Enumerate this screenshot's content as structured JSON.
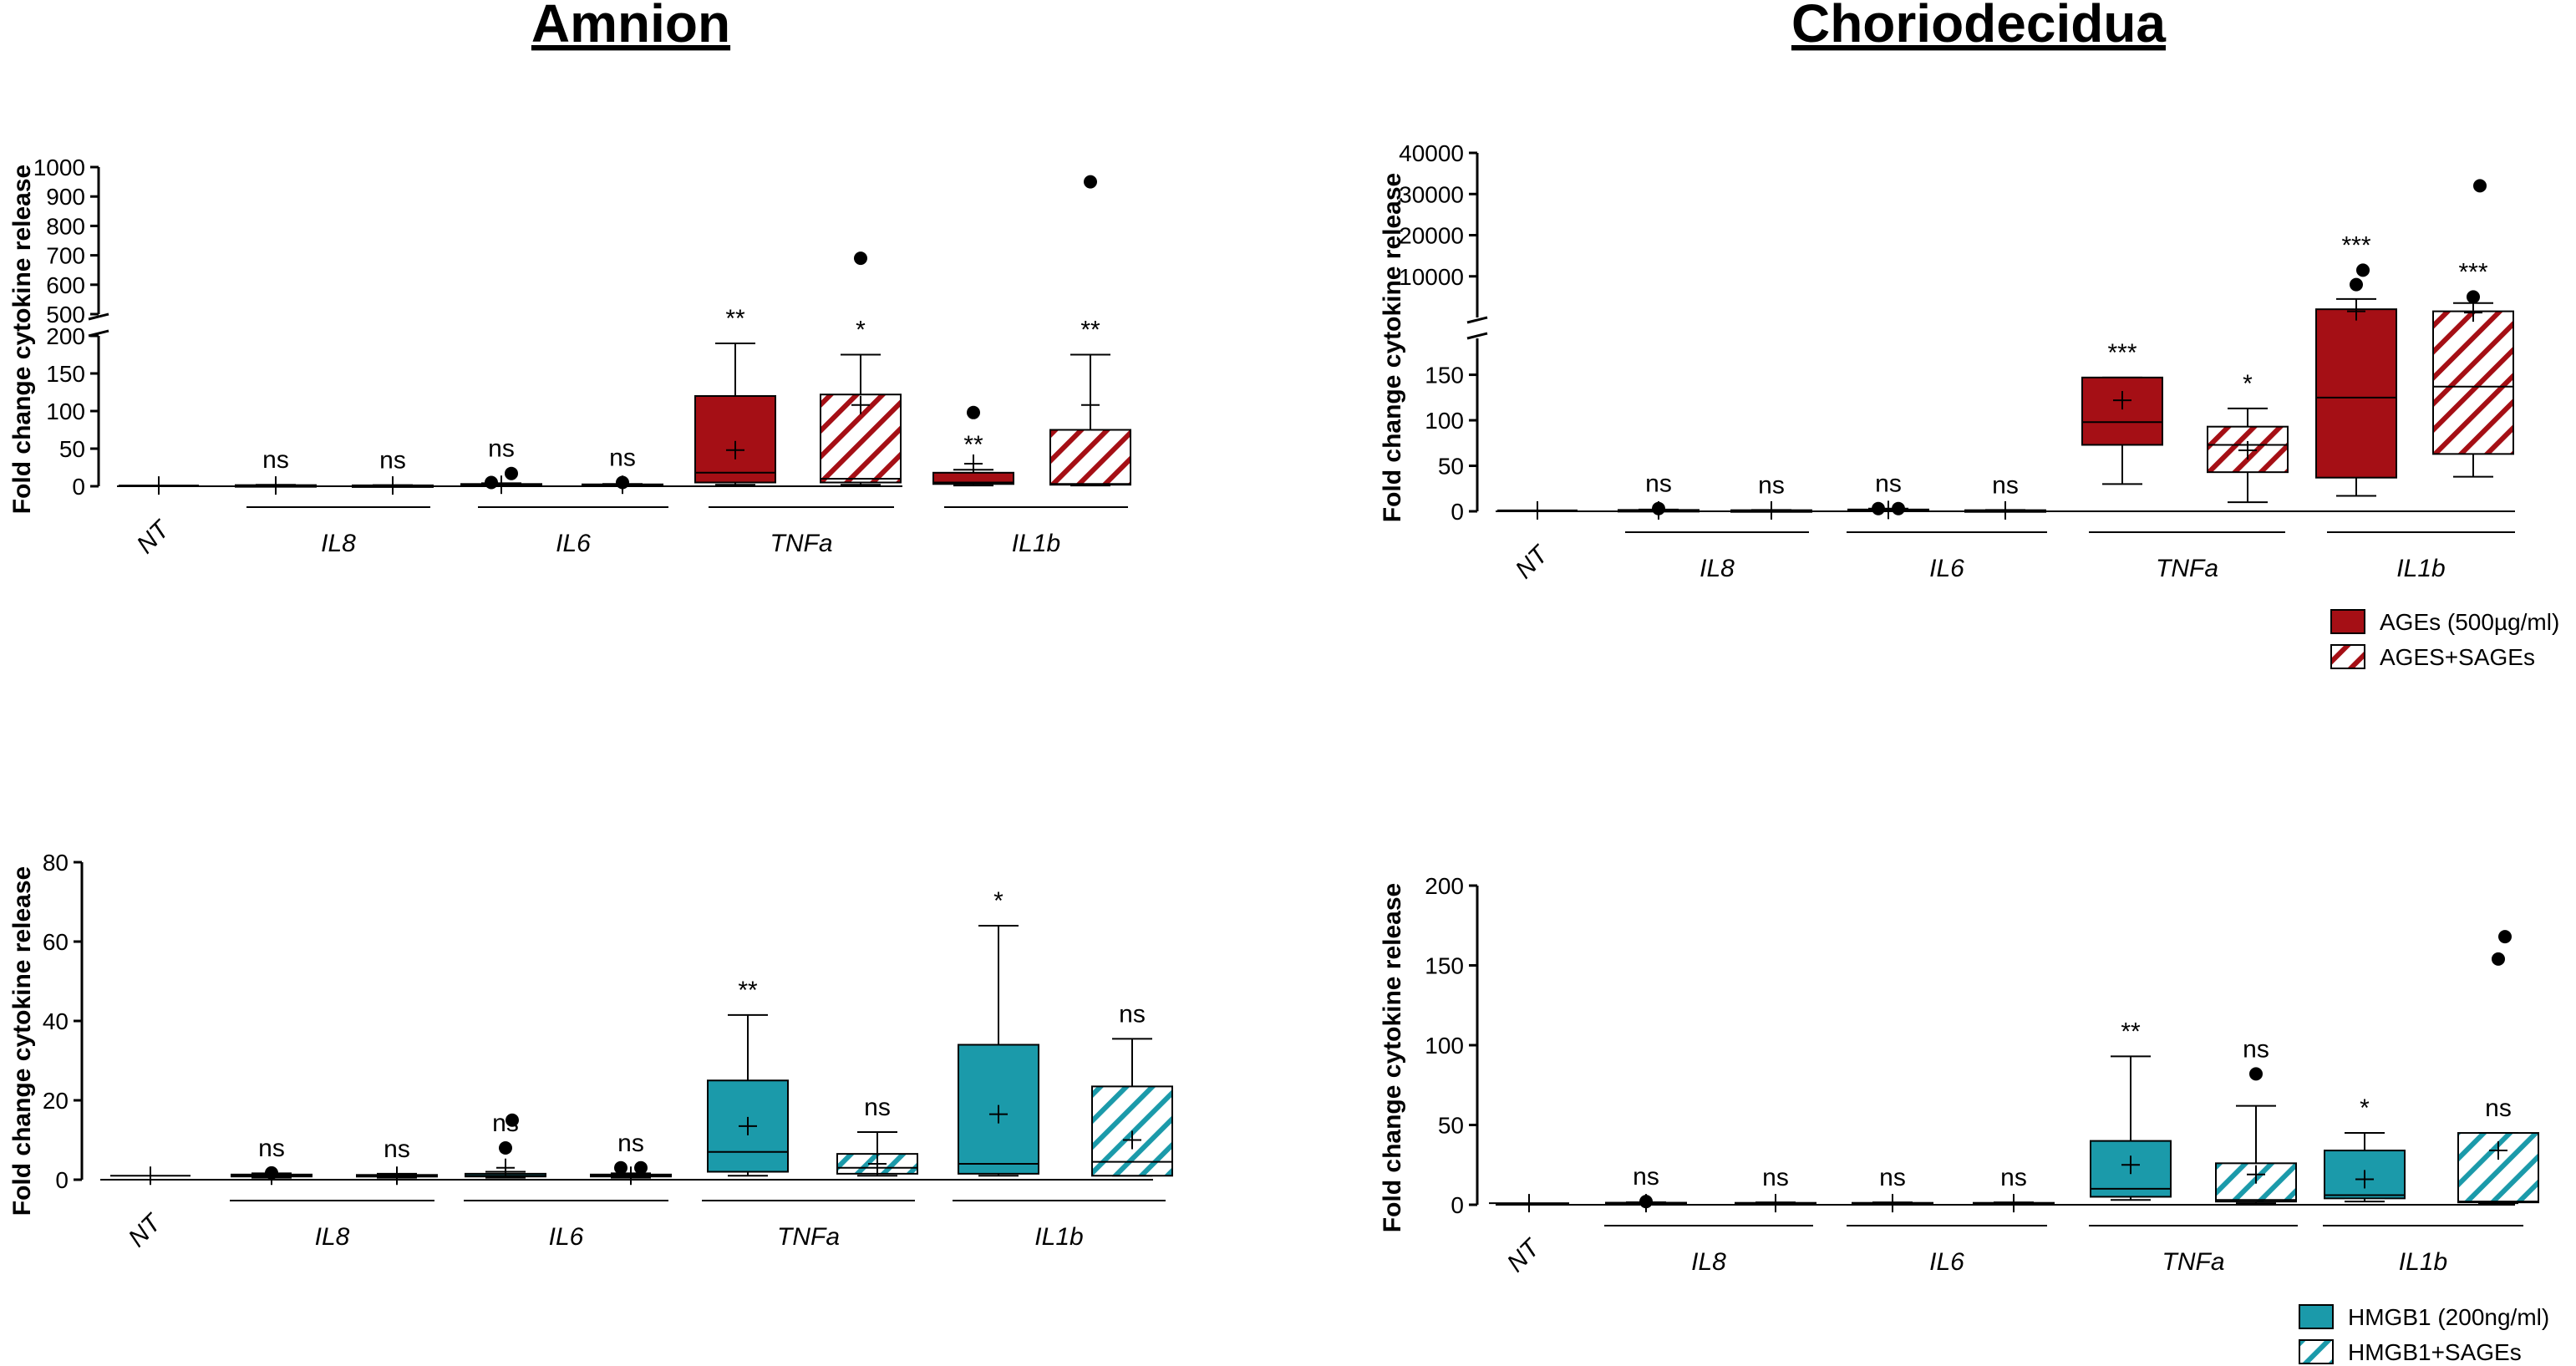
{
  "titles": {
    "left": "Amnion",
    "right": "Choriodecidua"
  },
  "colors": {
    "ages": "#a50f15",
    "hmgb1": "#1b9aaa",
    "axis": "#000000"
  },
  "legends": {
    "ages": [
      {
        "label": "AGEs (500µg/ml)",
        "style": "solid"
      },
      {
        "label": "AGES+SAGEs",
        "style": "hatched"
      }
    ],
    "hmgb1": [
      {
        "label": "HMGB1 (200ng/ml)",
        "style": "solid"
      },
      {
        "label": "HMGB1+SAGEs",
        "style": "hatched"
      }
    ]
  },
  "chart_data": [
    {
      "id": "amnion-ages",
      "type": "boxplot",
      "title": "Amnion",
      "ylabel": "Fold change cytokine release",
      "ylim": [
        0,
        1000
      ],
      "axis_break": [
        200,
        500
      ],
      "yticks_lower": [
        "0",
        "50",
        "100",
        "150",
        "200"
      ],
      "yticks_upper": [
        "500",
        "600",
        "700",
        "800",
        "900",
        "1000"
      ],
      "nt_label": "NT",
      "categories": [
        "IL8",
        "IL6",
        "TNFa",
        "IL1b"
      ],
      "color": "ages",
      "series": [
        {
          "name": "NT",
          "boxes": [
            {
              "min": 1,
              "q1": 1,
              "median": 1,
              "q3": 1,
              "max": 1,
              "mean": 1,
              "sig": "",
              "outliers": []
            }
          ]
        },
        {
          "name": "AGEs (500µg/ml)",
          "style": "solid",
          "boxes": [
            {
              "min": 0.5,
              "q1": 0.8,
              "median": 1,
              "q3": 1.5,
              "max": 2,
              "mean": 1,
              "sig": "ns",
              "outliers": []
            },
            {
              "min": 0.5,
              "q1": 1,
              "median": 1.5,
              "q3": 3,
              "max": 4,
              "mean": 2,
              "sig": "ns",
              "outliers": [
                5,
                17
              ]
            },
            {
              "min": 2,
              "q1": 5,
              "median": 18,
              "q3": 120,
              "max": 190,
              "mean": 48,
              "sig": "**",
              "outliers": []
            },
            {
              "min": 1,
              "q1": 3,
              "median": 5,
              "q3": 18,
              "max": 22,
              "mean": 30,
              "sig": "**",
              "outliers": [
                98
              ]
            }
          ]
        },
        {
          "name": "AGES+SAGEs",
          "style": "hatched",
          "boxes": [
            {
              "min": 0.5,
              "q1": 0.8,
              "median": 1,
              "q3": 1.2,
              "max": 1.5,
              "mean": 1,
              "sig": "ns",
              "outliers": []
            },
            {
              "min": 0.5,
              "q1": 1,
              "median": 1.5,
              "q3": 2.5,
              "max": 3,
              "mean": 2,
              "sig": "ns",
              "outliers": [
                5
              ]
            },
            {
              "min": 2,
              "q1": 5,
              "median": 10,
              "q3": 122,
              "max": 175,
              "mean": 108,
              "sig": "*",
              "outliers": [
                690
              ]
            },
            {
              "min": 1,
              "q1": 2,
              "median": 3,
              "q3": 75,
              "max": 175,
              "mean": 108,
              "sig": "**",
              "outliers": [
                950
              ]
            }
          ]
        }
      ]
    },
    {
      "id": "choriodecidua-ages",
      "type": "boxplot",
      "title": "Choriodecidua",
      "ylabel": "Fold change cytokine release",
      "ylim": [
        0,
        40000
      ],
      "axis_break": [
        190,
        1000
      ],
      "yticks_lower": [
        "0",
        "50",
        "100",
        "150"
      ],
      "yticks_upper": [
        "10000",
        "20000",
        "30000",
        "40000"
      ],
      "nt_label": "NT",
      "categories": [
        "IL8",
        "IL6",
        "TNFa",
        "IL1b"
      ],
      "color": "ages",
      "series": [
        {
          "name": "NT",
          "boxes": [
            {
              "min": 1,
              "q1": 1,
              "median": 1,
              "q3": 1,
              "max": 1,
              "mean": 1,
              "sig": "",
              "outliers": []
            }
          ]
        },
        {
          "name": "AGEs (500µg/ml)",
          "style": "solid",
          "boxes": [
            {
              "min": 0.5,
              "q1": 0.8,
              "median": 1,
              "q3": 1.5,
              "max": 2,
              "mean": 1,
              "sig": "ns",
              "outliers": [
                3
              ]
            },
            {
              "min": 0.5,
              "q1": 1,
              "median": 1.5,
              "q3": 2,
              "max": 3,
              "mean": 1.5,
              "sig": "ns",
              "outliers": [
                3,
                3
              ]
            },
            {
              "min": 30,
              "q1": 73,
              "median": 98,
              "q3": 147,
              "max": 147,
              "mean": 122,
              "sig": "***",
              "outliers": []
            },
            {
              "min": 17,
              "q1": 37,
              "median": 125,
              "q3": 2000,
              "max": 4500,
              "mean": 1500,
              "sig": "***",
              "outliers": [
                8000,
                11500
              ]
            }
          ]
        },
        {
          "name": "AGES+SAGEs",
          "style": "hatched",
          "boxes": [
            {
              "min": 0.5,
              "q1": 0.8,
              "median": 1,
              "q3": 1.2,
              "max": 1.5,
              "mean": 1,
              "sig": "ns",
              "outliers": []
            },
            {
              "min": 0.5,
              "q1": 0.8,
              "median": 1,
              "q3": 1.2,
              "max": 1.5,
              "mean": 1,
              "sig": "ns",
              "outliers": []
            },
            {
              "min": 10,
              "q1": 43,
              "median": 73,
              "q3": 93,
              "max": 113,
              "mean": 67,
              "sig": "*",
              "outliers": []
            },
            {
              "min": 38,
              "q1": 63,
              "median": 137,
              "q3": 1500,
              "max": 3500,
              "mean": 1200,
              "sig": "***",
              "outliers": [
                5000,
                32000
              ]
            }
          ]
        }
      ]
    },
    {
      "id": "amnion-hmgb1",
      "type": "boxplot",
      "title": "Amnion",
      "ylabel": "Fold change cytokine release",
      "ylim": [
        0,
        80
      ],
      "yticks": [
        "0",
        "20",
        "40",
        "60",
        "80"
      ],
      "nt_label": "NT",
      "categories": [
        "IL8",
        "IL6",
        "TNFa",
        "IL1b"
      ],
      "color": "hmgb1",
      "series": [
        {
          "name": "NT",
          "boxes": [
            {
              "min": 1,
              "q1": 1,
              "median": 1,
              "q3": 1,
              "max": 1,
              "mean": 1,
              "sig": "",
              "outliers": []
            }
          ]
        },
        {
          "name": "HMGB1 (200ng/ml)",
          "style": "solid",
          "boxes": [
            {
              "min": 0.5,
              "q1": 0.8,
              "median": 1,
              "q3": 1.3,
              "max": 1.6,
              "mean": 1,
              "sig": "ns",
              "outliers": [
                1.7
              ]
            },
            {
              "min": 0.5,
              "q1": 0.8,
              "median": 1,
              "q3": 1.5,
              "max": 2,
              "mean": 3,
              "sig": "ns",
              "outliers": [
                8,
                15
              ]
            },
            {
              "min": 1,
              "q1": 2,
              "median": 7,
              "q3": 25,
              "max": 41.5,
              "mean": 13.5,
              "sig": "**",
              "outliers": []
            },
            {
              "min": 1,
              "q1": 1.5,
              "median": 4,
              "q3": 34,
              "max": 64,
              "mean": 16.5,
              "sig": "*",
              "outliers": []
            }
          ]
        },
        {
          "name": "HMGB1+SAGEs",
          "style": "hatched",
          "boxes": [
            {
              "min": 0.5,
              "q1": 0.8,
              "median": 1,
              "q3": 1.2,
              "max": 1.5,
              "mean": 1,
              "sig": "ns",
              "outliers": []
            },
            {
              "min": 0.5,
              "q1": 0.8,
              "median": 1,
              "q3": 1.3,
              "max": 1.6,
              "mean": 1,
              "sig": "ns",
              "outliers": [
                3,
                3
              ]
            },
            {
              "min": 1,
              "q1": 1.5,
              "median": 3,
              "q3": 6.5,
              "max": 12,
              "mean": 4,
              "sig": "ns",
              "outliers": []
            },
            {
              "min": 1,
              "q1": 1,
              "median": 4.5,
              "q3": 23.5,
              "max": 35.5,
              "mean": 10,
              "sig": "ns",
              "outliers": []
            }
          ]
        }
      ]
    },
    {
      "id": "choriodecidua-hmgb1",
      "type": "boxplot",
      "title": "Choriodecidua",
      "ylabel": "Fold change cytokine release",
      "ylim": [
        0,
        200
      ],
      "yticks": [
        "0",
        "50",
        "100",
        "150",
        "200"
      ],
      "nt_label": "NT",
      "categories": [
        "IL8",
        "IL6",
        "TNFa",
        "IL1b"
      ],
      "color": "hmgb1",
      "series": [
        {
          "name": "NT",
          "boxes": [
            {
              "min": 1,
              "q1": 1,
              "median": 1,
              "q3": 1,
              "max": 1,
              "mean": 1,
              "sig": "",
              "outliers": []
            }
          ]
        },
        {
          "name": "HMGB1 (200ng/ml)",
          "style": "solid",
          "boxes": [
            {
              "min": 0.5,
              "q1": 0.8,
              "median": 1,
              "q3": 1.3,
              "max": 1.6,
              "mean": 1,
              "sig": "ns",
              "outliers": [
                2
              ]
            },
            {
              "min": 0.5,
              "q1": 0.8,
              "median": 1,
              "q3": 1.2,
              "max": 1.5,
              "mean": 1,
              "sig": "ns",
              "outliers": []
            },
            {
              "min": 3,
              "q1": 5,
              "median": 10,
              "q3": 40,
              "max": 93,
              "mean": 25,
              "sig": "**",
              "outliers": []
            },
            {
              "min": 2,
              "q1": 4,
              "median": 6,
              "q3": 34,
              "max": 45,
              "mean": 16,
              "sig": "*",
              "outliers": []
            }
          ]
        },
        {
          "name": "HMGB1+SAGEs",
          "style": "hatched",
          "boxes": [
            {
              "min": 0.5,
              "q1": 0.8,
              "median": 1,
              "q3": 1.2,
              "max": 1.5,
              "mean": 1,
              "sig": "ns",
              "outliers": []
            },
            {
              "min": 0.5,
              "q1": 0.8,
              "median": 1,
              "q3": 1.2,
              "max": 1.5,
              "mean": 1,
              "sig": "ns",
              "outliers": []
            },
            {
              "min": 1,
              "q1": 2,
              "median": 3,
              "q3": 26,
              "max": 62,
              "mean": 19,
              "sig": "ns",
              "outliers": [
                82
              ]
            },
            {
              "min": 1,
              "q1": 1.5,
              "median": 2,
              "q3": 45,
              "max": 45,
              "mean": 34,
              "sig": "ns",
              "outliers": [
                154,
                168
              ]
            }
          ]
        }
      ]
    }
  ]
}
